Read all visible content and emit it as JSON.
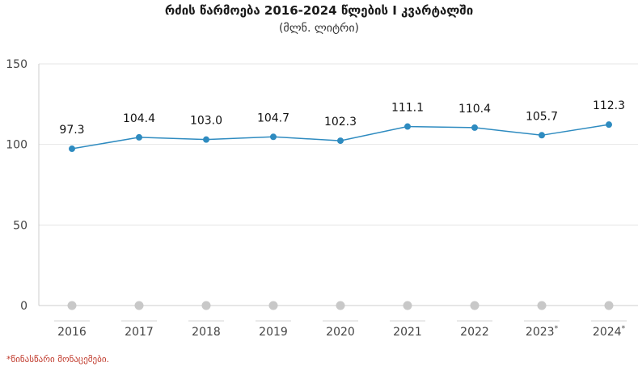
{
  "chart_data": {
    "type": "line",
    "title": "რძის წარმოება 2016-2024 წლების I კვარტალში",
    "subtitle": "(მლნ. ლიტრი)",
    "categories": [
      "2016",
      "2017",
      "2018",
      "2019",
      "2020",
      "2021",
      "2022",
      "2023",
      "2024"
    ],
    "category_marks": [
      "",
      "",
      "",
      "",
      "",
      "",
      "",
      "*",
      "*"
    ],
    "series": [
      {
        "values": [
          97.3,
          104.4,
          103.0,
          104.7,
          102.3,
          111.1,
          110.4,
          105.7,
          112.3
        ],
        "labels": [
          "97.3",
          "104.4",
          "103.0",
          "104.7",
          "102.3",
          "111.1",
          "110.4",
          "105.7",
          "112.3"
        ],
        "color": "#2e8bc0"
      }
    ],
    "ylim": [
      0,
      150
    ],
    "yticks": [
      "0",
      "50",
      "100",
      "150"
    ],
    "grid": true,
    "baseline_marker_color": "#c8c8c8",
    "footnote": "*წინასწარი მონაცემები."
  }
}
